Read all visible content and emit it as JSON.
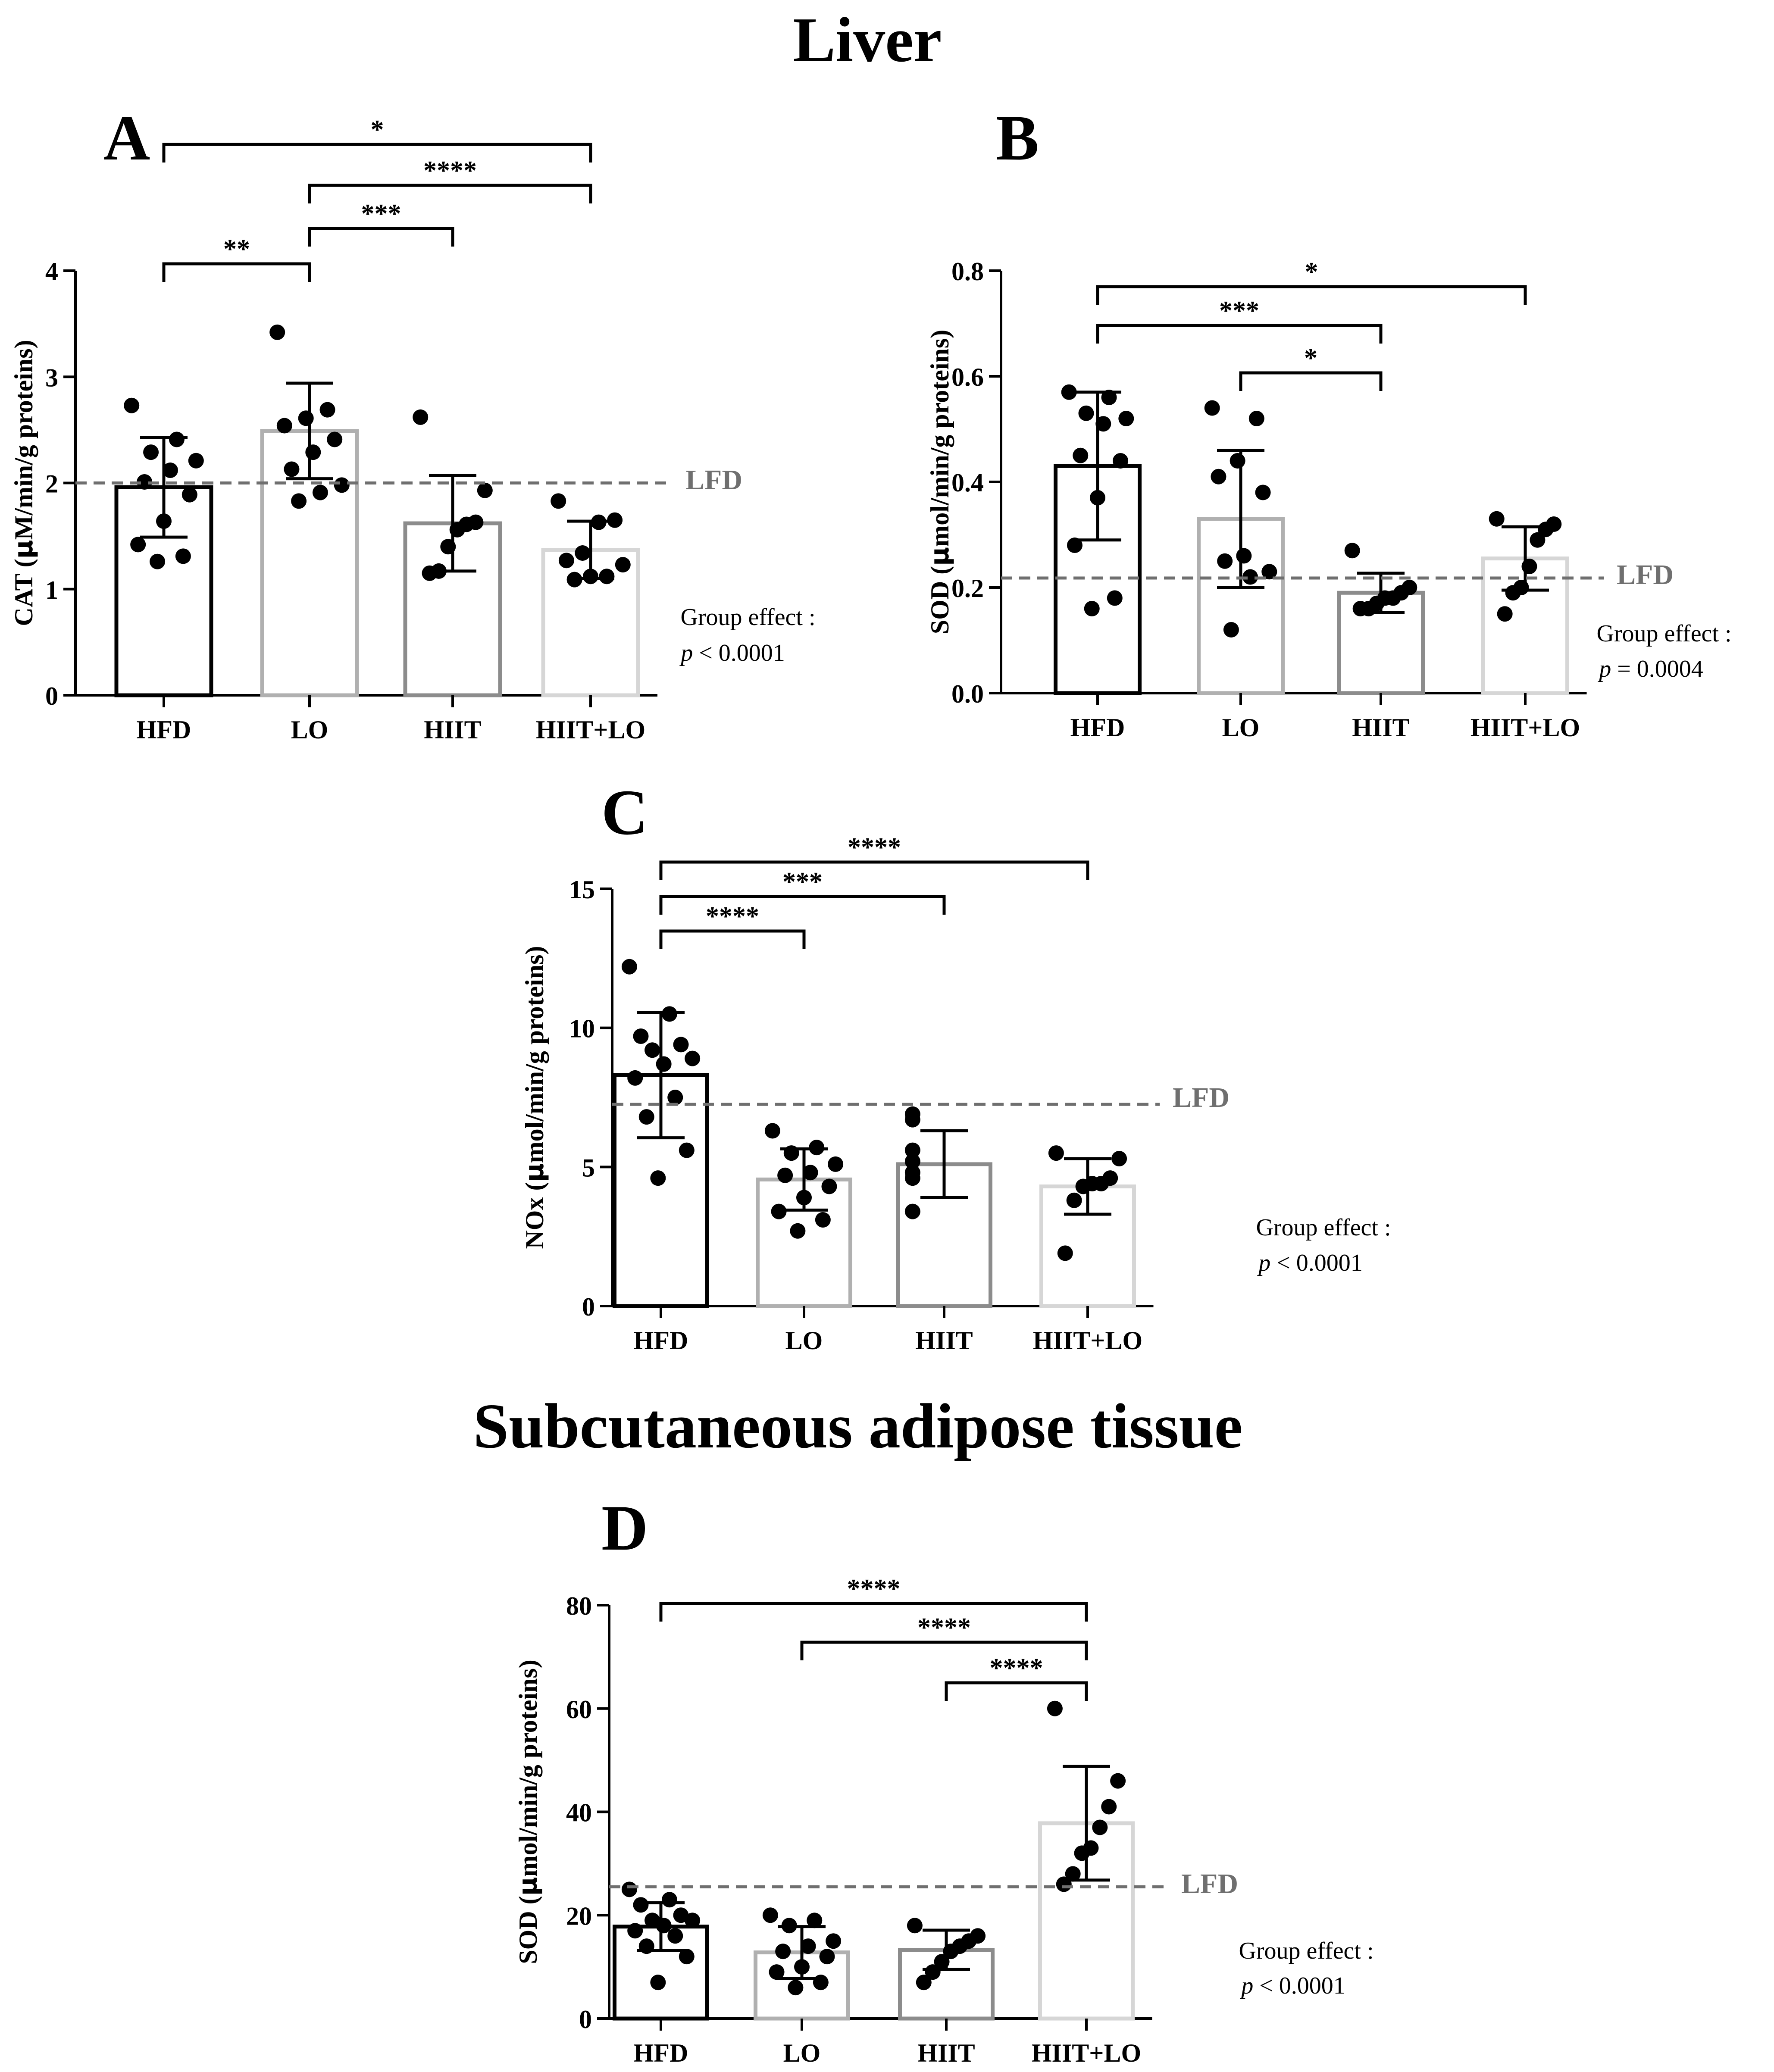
{
  "headings": {
    "liver": "Liver",
    "adipose": "Subcutaneous adipose tissue"
  },
  "style": {
    "bar_colors": [
      "#000000",
      "#b0b0b0",
      "#8c8c8c",
      "#d6d6d6"
    ],
    "point_color": "#000000",
    "lfd_color": "#6f6f6f"
  },
  "chart_data": [
    {
      "id": "A",
      "type": "bar",
      "panel_letter": "A",
      "categories": [
        "HFD",
        "LO",
        "HIIT",
        "HIIT+LO"
      ],
      "ylabel_prefix": "CAT (",
      "ylabel_mu": "µ",
      "ylabel_suffix": "M/min/g proteins)",
      "ylim": [
        0,
        4
      ],
      "yticks": [
        0,
        1,
        2,
        3,
        4
      ],
      "ytick_labels": [
        "0",
        "1",
        "2",
        "3",
        "4"
      ],
      "means": [
        1.96,
        2.49,
        1.62,
        1.37
      ],
      "sd": [
        0.47,
        0.45,
        0.45,
        0.27
      ],
      "points": [
        [
          2.73,
          2.41,
          2.29,
          2.21,
          2.12,
          2.01,
          1.89,
          1.64,
          1.42,
          1.31,
          1.26
        ],
        [
          3.42,
          2.69,
          2.61,
          2.54,
          2.41,
          2.29,
          2.13,
          1.98,
          1.91,
          1.83
        ],
        [
          2.62,
          1.93,
          1.63,
          1.61,
          1.56,
          1.4,
          1.17,
          1.15
        ],
        [
          1.83,
          1.65,
          1.63,
          1.34,
          1.27,
          1.23,
          1.12,
          1.12,
          1.09
        ]
      ],
      "lfd_value": 2.0,
      "lfd_label": "LFD",
      "comparisons": [
        {
          "from": 0,
          "to": 1,
          "label": "**"
        },
        {
          "from": 1,
          "to": 2,
          "label": "***"
        },
        {
          "from": 1,
          "to": 3,
          "label": "****"
        },
        {
          "from": 0,
          "to": 3,
          "label": "*"
        }
      ],
      "group_effect": "Group effect :",
      "p_value": "< 0.0001"
    },
    {
      "id": "B",
      "type": "bar",
      "panel_letter": "B",
      "categories": [
        "HFD",
        "LO",
        "HIIT",
        "HIIT+LO"
      ],
      "ylabel_prefix": "SOD (",
      "ylabel_mu": "µ",
      "ylabel_suffix": "mol/min/g proteins)",
      "ylim": [
        0,
        0.8
      ],
      "yticks": [
        0,
        0.2,
        0.4,
        0.6,
        0.8
      ],
      "ytick_labels": [
        "0.0",
        "0.2",
        "0.4",
        "0.6",
        "0.8"
      ],
      "means": [
        0.43,
        0.33,
        0.19,
        0.255
      ],
      "sd": [
        0.14,
        0.13,
        0.037,
        0.06
      ],
      "points": [
        [
          0.57,
          0.56,
          0.53,
          0.52,
          0.51,
          0.45,
          0.44,
          0.37,
          0.28,
          0.18,
          0.16
        ],
        [
          0.54,
          0.52,
          0.44,
          0.41,
          0.38,
          0.26,
          0.25,
          0.23,
          0.22,
          0.12
        ],
        [
          0.27,
          0.2,
          0.19,
          0.18,
          0.18,
          0.17,
          0.16,
          0.16
        ],
        [
          0.33,
          0.32,
          0.31,
          0.29,
          0.24,
          0.2,
          0.19,
          0.15
        ]
      ],
      "lfd_value": 0.218,
      "lfd_label": "LFD",
      "comparisons": [
        {
          "from": 1,
          "to": 2,
          "label": "*"
        },
        {
          "from": 0,
          "to": 2,
          "label": "***"
        },
        {
          "from": 0,
          "to": 3,
          "label": "*"
        }
      ],
      "group_effect": "Group effect :",
      "p_value": "= 0.0004"
    },
    {
      "id": "C",
      "type": "bar",
      "panel_letter": "C",
      "categories": [
        "HFD",
        "LO",
        "HIIT",
        "HIIT+LO"
      ],
      "ylabel_prefix": "NOx (",
      "ylabel_mu": "µ",
      "ylabel_suffix": "mol/min/g proteins)",
      "ylim": [
        0,
        15
      ],
      "yticks": [
        0,
        5,
        10,
        15
      ],
      "ytick_labels": [
        "0",
        "5",
        "10",
        "15"
      ],
      "means": [
        8.3,
        4.55,
        5.1,
        4.3
      ],
      "sd": [
        2.25,
        1.1,
        1.2,
        1.0
      ],
      "points": [
        [
          12.2,
          10.5,
          9.7,
          9.4,
          9.2,
          8.9,
          8.7,
          8.2,
          7.5,
          6.8,
          5.6,
          4.6
        ],
        [
          6.3,
          5.7,
          5.5,
          5.1,
          4.8,
          4.7,
          4.3,
          3.9,
          3.4,
          3.1,
          2.7
        ],
        [
          6.9,
          6.7,
          5.6,
          5.2,
          4.8,
          4.6,
          3.4
        ],
        [
          5.5,
          5.3,
          4.6,
          4.4,
          4.4,
          4.3,
          3.8,
          1.9
        ]
      ],
      "lfd_value": 7.25,
      "lfd_label": "LFD",
      "comparisons": [
        {
          "from": 0,
          "to": 1,
          "label": "****"
        },
        {
          "from": 0,
          "to": 2,
          "label": "***"
        },
        {
          "from": 0,
          "to": 3,
          "label": "****"
        }
      ],
      "group_effect": "Group effect :",
      "p_value": "< 0.0001"
    },
    {
      "id": "D",
      "type": "bar",
      "panel_letter": "D",
      "categories": [
        "HFD",
        "LO",
        "HIIT",
        "HIIT+LO"
      ],
      "ylabel_prefix": "SOD (",
      "ylabel_mu": "µ",
      "ylabel_suffix": "mol/min/g proteins)",
      "ylim": [
        0,
        80
      ],
      "yticks": [
        0,
        20,
        40,
        60,
        80
      ],
      "ytick_labels": [
        "0",
        "20",
        "40",
        "60",
        "80"
      ],
      "means": [
        17.8,
        12.8,
        13.3,
        37.8
      ],
      "sd": [
        4.6,
        5.0,
        3.8,
        11.0
      ],
      "points": [
        [
          25,
          23,
          22,
          20,
          19,
          19,
          18,
          17,
          16,
          14,
          12,
          7
        ],
        [
          20,
          19,
          18,
          15,
          14,
          13,
          12,
          10,
          9,
          7,
          6
        ],
        [
          18,
          16,
          15,
          14,
          13,
          11,
          9,
          7
        ],
        [
          60,
          46,
          41,
          37,
          33,
          32,
          28,
          26
        ]
      ],
      "lfd_value": 25.5,
      "lfd_label": "LFD",
      "comparisons": [
        {
          "from": 2,
          "to": 3,
          "label": "****"
        },
        {
          "from": 1,
          "to": 3,
          "label": "****"
        },
        {
          "from": 0,
          "to": 3,
          "label": "****"
        }
      ],
      "group_effect": "Group effect :",
      "p_value": "< 0.0001"
    }
  ]
}
